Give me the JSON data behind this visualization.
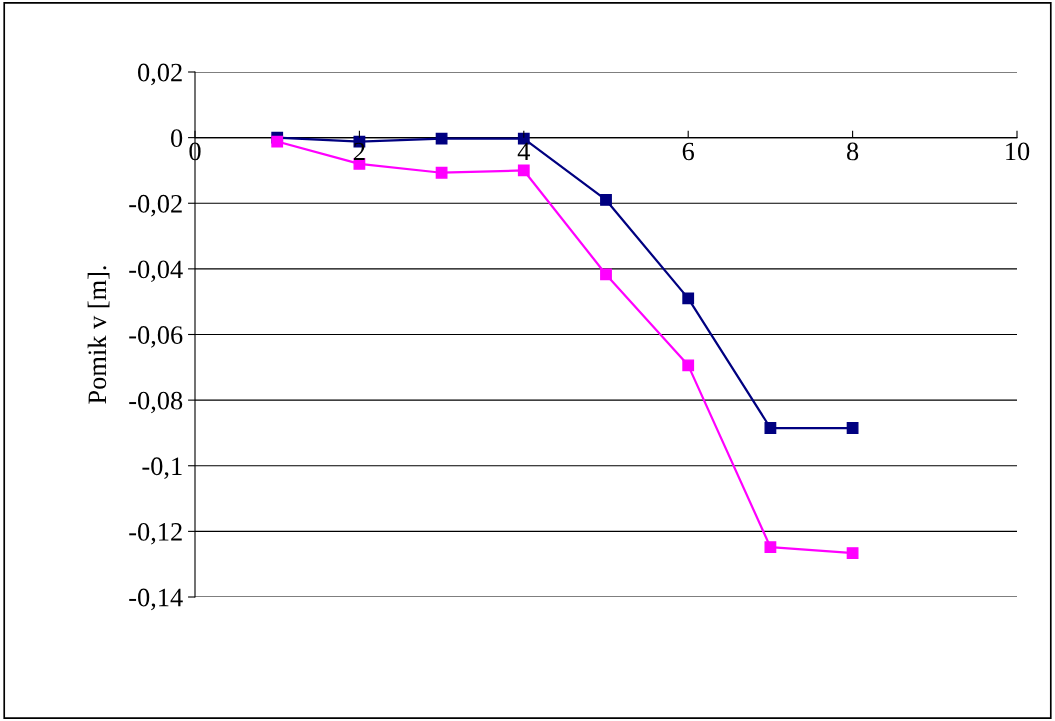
{
  "chart_data": {
    "type": "line",
    "ylabel": "Pomik v [m].",
    "x": [
      1,
      2,
      3,
      4,
      5,
      6,
      7,
      8
    ],
    "series": [
      {
        "color": "#000080",
        "values": [
          0,
          -0.0012,
          -0.0003,
          -0.0003,
          -0.019,
          -0.049,
          -0.0885,
          -0.0885
        ]
      },
      {
        "color": "#ff00ff",
        "values": [
          -0.0012,
          -0.008,
          -0.0107,
          -0.01,
          -0.0417,
          -0.0694,
          -0.1248,
          -0.1266
        ]
      }
    ],
    "xlim": [
      0,
      10
    ],
    "xticks": [
      0,
      2,
      4,
      6,
      8,
      10
    ],
    "ylim": [
      -0.14,
      0.02
    ],
    "yticks": [
      {
        "value": 0.02,
        "label": "0,02"
      },
      0,
      {
        "value": -0.02,
        "label": "-0,02"
      },
      {
        "value": -0.04,
        "label": "-0,04"
      },
      {
        "value": -0.06,
        "label": "-0,06"
      },
      {
        "value": -0.08,
        "label": "-0,08"
      },
      {
        "value": -0.1,
        "label": "-0,1"
      },
      {
        "value": -0.12,
        "label": "-0,12"
      },
      {
        "value": -0.14,
        "label": "-0,14"
      }
    ],
    "grid": "y",
    "marker": "square",
    "line_style": "solid"
  }
}
